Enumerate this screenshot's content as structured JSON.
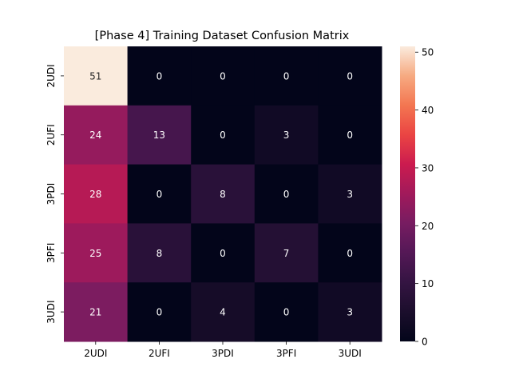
{
  "chart_data": {
    "type": "heatmap",
    "title": "[Phase 4] Training Dataset Confusion Matrix",
    "xlabel": "",
    "ylabel": "",
    "x_categories": [
      "2UDI",
      "2UFI",
      "3PDI",
      "3PFI",
      "3UDI"
    ],
    "y_categories": [
      "2UDI",
      "2UFI",
      "3PDI",
      "3PFI",
      "3UDI"
    ],
    "values": [
      [
        51,
        0,
        0,
        0,
        0
      ],
      [
        24,
        13,
        0,
        3,
        0
      ],
      [
        28,
        0,
        8,
        0,
        3
      ],
      [
        25,
        8,
        0,
        7,
        0
      ],
      [
        21,
        0,
        4,
        0,
        3
      ]
    ],
    "colorbar": {
      "min": 0,
      "max": 51,
      "ticks": [
        0,
        10,
        20,
        30,
        40,
        50
      ],
      "colormap": "rocket"
    },
    "annotations": true,
    "grid": false
  }
}
